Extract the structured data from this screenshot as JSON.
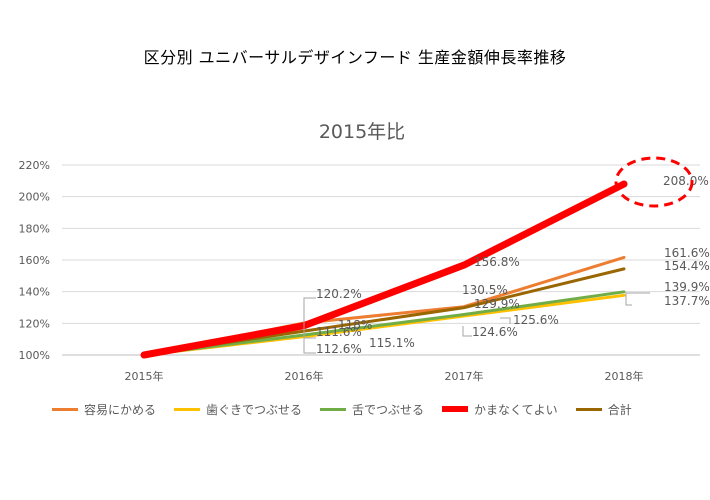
{
  "title": "区分別 ユニバーサルデザインフード 生産金額伸長率推移",
  "chart_data": {
    "type": "line",
    "title": "2015年比",
    "categories": [
      "2015年",
      "2016年",
      "2017年",
      "2018年"
    ],
    "ylim": [
      100,
      220
    ],
    "yticks": [
      "100%",
      "120%",
      "140%",
      "160%",
      "180%",
      "200%",
      "220%"
    ],
    "grid": true,
    "legend_position": "bottom",
    "series": [
      {
        "name": "容易にかめる",
        "values": [
          100,
          120.2,
          130.5,
          161.6
        ],
        "color": "#ED7D31"
      },
      {
        "name": "歯ぐきでつぶせる",
        "values": [
          100,
          111.6,
          124.6,
          137.7
        ],
        "color": "#FFC000"
      },
      {
        "name": "舌でつぶせる",
        "values": [
          100,
          112.6,
          125.6,
          139.9
        ],
        "color": "#70AD47"
      },
      {
        "name": "かまなくてよい",
        "values": [
          100,
          118.5,
          156.8,
          208.0
        ],
        "color": "#FF0000"
      },
      {
        "name": "合計",
        "values": [
          100,
          115.1,
          129.9,
          154.4
        ],
        "color": "#996600"
      }
    ],
    "data_labels": [
      {
        "text": "120.2%",
        "series": 0,
        "point": 1
      },
      {
        "text": "111.6%",
        "series": 1,
        "point": 1
      },
      {
        "text": "112.6%",
        "series": 2,
        "point": 1
      },
      {
        "text": "118%",
        "series": 3,
        "point": 1
      },
      {
        "text": "115.1%",
        "series": 4,
        "point": 1
      },
      {
        "text": "130.5%",
        "series": 0,
        "point": 2
      },
      {
        "text": "124.6%",
        "series": 1,
        "point": 2
      },
      {
        "text": "125.6%",
        "series": 2,
        "point": 2
      },
      {
        "text": "156.8%",
        "series": 3,
        "point": 2
      },
      {
        "text": "129.9%",
        "series": 4,
        "point": 2
      },
      {
        "text": "161.6%",
        "series": 0,
        "point": 3
      },
      {
        "text": "137.7%",
        "series": 1,
        "point": 3
      },
      {
        "text": "139.9%",
        "series": 2,
        "point": 3
      },
      {
        "text": "208.0%",
        "series": 3,
        "point": 3
      },
      {
        "text": "154.4%",
        "series": 4,
        "point": 3
      }
    ],
    "highlight": {
      "type": "dashed-ellipse",
      "color": "#FF0000",
      "series": 3,
      "point": 3
    }
  }
}
